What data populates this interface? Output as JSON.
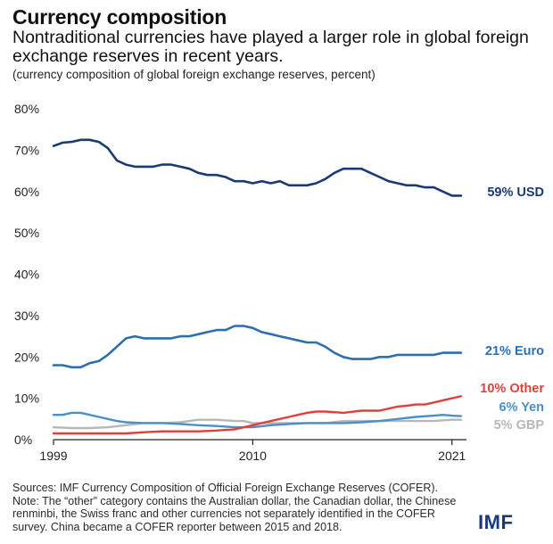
{
  "header": {
    "title": "Currency composition",
    "subtitle": "Nontraditional currencies have played a larger role in global foreign exchange reserves in recent years.",
    "unit_note": "(currency composition of global foreign exchange reserves, percent)"
  },
  "footer": {
    "sources": "Sources: IMF Currency Composition of Official Foreign Exchange Reserves (COFER).",
    "note": "Note: The “other” category contains the Australian dollar, the Canadian dollar, the Chinese renminbi, the Swiss franc and other currencies not separately identified in the COFER survey. China became a COFER reporter between 2015 and 2018.",
    "logo": "IMF"
  },
  "chart_data": {
    "type": "line",
    "title": "Currency composition",
    "xlabel": "",
    "ylabel": "",
    "xlim": [
      1999,
      2021.8
    ],
    "ylim": [
      0,
      80
    ],
    "x_ticks": [
      1999,
      2010,
      2021
    ],
    "y_ticks": [
      0,
      10,
      20,
      30,
      40,
      50,
      60,
      70,
      80
    ],
    "y_tick_labels": [
      "0%",
      "10%",
      "20%",
      "30%",
      "40%",
      "50%",
      "60%",
      "70%",
      "80%"
    ],
    "grid": false,
    "legend": "inline labels at line ends (right)",
    "series": [
      {
        "name": "USD",
        "label": "59% USD",
        "color": "#1b3a73",
        "points": [
          [
            1999,
            71
          ],
          [
            1999.5,
            71.8
          ],
          [
            2000,
            72
          ],
          [
            2000.5,
            72.5
          ],
          [
            2001,
            72.5
          ],
          [
            2001.5,
            72
          ],
          [
            2002,
            70.5
          ],
          [
            2002.5,
            67.5
          ],
          [
            2003,
            66.5
          ],
          [
            2003.5,
            66
          ],
          [
            2004,
            66
          ],
          [
            2004.5,
            66
          ],
          [
            2005,
            66.5
          ],
          [
            2005.5,
            66.5
          ],
          [
            2006,
            66
          ],
          [
            2006.5,
            65.5
          ],
          [
            2007,
            64.5
          ],
          [
            2007.5,
            64
          ],
          [
            2008,
            64
          ],
          [
            2008.5,
            63.5
          ],
          [
            2009,
            62.5
          ],
          [
            2009.5,
            62.5
          ],
          [
            2010,
            62
          ],
          [
            2010.5,
            62.5
          ],
          [
            2011,
            62
          ],
          [
            2011.5,
            62.5
          ],
          [
            2012,
            61.5
          ],
          [
            2012.5,
            61.5
          ],
          [
            2013,
            61.5
          ],
          [
            2013.5,
            62
          ],
          [
            2014,
            63
          ],
          [
            2014.5,
            64.5
          ],
          [
            2015,
            65.5
          ],
          [
            2015.5,
            65.5
          ],
          [
            2016,
            65.5
          ],
          [
            2016.5,
            64.5
          ],
          [
            2017,
            63.5
          ],
          [
            2017.5,
            62.5
          ],
          [
            2018,
            62
          ],
          [
            2018.5,
            61.5
          ],
          [
            2019,
            61.5
          ],
          [
            2019.5,
            61
          ],
          [
            2020,
            61
          ],
          [
            2020.5,
            60
          ],
          [
            2021,
            59
          ],
          [
            2021.5,
            59
          ]
        ]
      },
      {
        "name": "Euro",
        "label": "21% Euro",
        "color": "#2c6fb0",
        "points": [
          [
            1999,
            18
          ],
          [
            1999.5,
            18
          ],
          [
            2000,
            17.5
          ],
          [
            2000.5,
            17.5
          ],
          [
            2001,
            18.5
          ],
          [
            2001.5,
            19
          ],
          [
            2002,
            20.5
          ],
          [
            2002.5,
            22.5
          ],
          [
            2003,
            24.5
          ],
          [
            2003.5,
            25
          ],
          [
            2004,
            24.5
          ],
          [
            2004.5,
            24.5
          ],
          [
            2005,
            24.5
          ],
          [
            2005.5,
            24.5
          ],
          [
            2006,
            25
          ],
          [
            2006.5,
            25
          ],
          [
            2007,
            25.5
          ],
          [
            2007.5,
            26
          ],
          [
            2008,
            26.5
          ],
          [
            2008.5,
            26.5
          ],
          [
            2009,
            27.5
          ],
          [
            2009.5,
            27.5
          ],
          [
            2010,
            27
          ],
          [
            2010.5,
            26
          ],
          [
            2011,
            25.5
          ],
          [
            2011.5,
            25
          ],
          [
            2012,
            24.5
          ],
          [
            2012.5,
            24
          ],
          [
            2013,
            23.5
          ],
          [
            2013.5,
            23.5
          ],
          [
            2014,
            22.5
          ],
          [
            2014.5,
            21
          ],
          [
            2015,
            20
          ],
          [
            2015.5,
            19.5
          ],
          [
            2016,
            19.5
          ],
          [
            2016.5,
            19.5
          ],
          [
            2017,
            20
          ],
          [
            2017.5,
            20
          ],
          [
            2018,
            20.5
          ],
          [
            2018.5,
            20.5
          ],
          [
            2019,
            20.5
          ],
          [
            2019.5,
            20.5
          ],
          [
            2020,
            20.5
          ],
          [
            2020.5,
            21
          ],
          [
            2021,
            21
          ],
          [
            2021.5,
            21
          ]
        ]
      },
      {
        "name": "Other",
        "label": "10% Other",
        "color": "#e0403a",
        "points": [
          [
            1999,
            1.5
          ],
          [
            2000,
            1.5
          ],
          [
            2001,
            1.5
          ],
          [
            2002,
            1.5
          ],
          [
            2003,
            1.5
          ],
          [
            2004,
            1.8
          ],
          [
            2005,
            2
          ],
          [
            2006,
            2
          ],
          [
            2007,
            2
          ],
          [
            2008,
            2.2
          ],
          [
            2009,
            2.5
          ],
          [
            2010,
            3.5
          ],
          [
            2010.5,
            4
          ],
          [
            2011,
            4.5
          ],
          [
            2011.5,
            5
          ],
          [
            2012,
            5.5
          ],
          [
            2012.5,
            6
          ],
          [
            2013,
            6.5
          ],
          [
            2013.5,
            6.8
          ],
          [
            2014,
            6.8
          ],
          [
            2015,
            6.5
          ],
          [
            2016,
            7
          ],
          [
            2017,
            7
          ],
          [
            2017.5,
            7.5
          ],
          [
            2018,
            8
          ],
          [
            2018.5,
            8.2
          ],
          [
            2019,
            8.5
          ],
          [
            2019.5,
            8.5
          ],
          [
            2020,
            9
          ],
          [
            2020.5,
            9.5
          ],
          [
            2021,
            10
          ],
          [
            2021.5,
            10.5
          ]
        ]
      },
      {
        "name": "Yen",
        "label": "6% Yen",
        "color": "#4a8fc9",
        "points": [
          [
            1999,
            6
          ],
          [
            1999.5,
            6
          ],
          [
            2000,
            6.5
          ],
          [
            2000.5,
            6.5
          ],
          [
            2001,
            6
          ],
          [
            2001.5,
            5.5
          ],
          [
            2002,
            5
          ],
          [
            2002.5,
            4.5
          ],
          [
            2003,
            4.2
          ],
          [
            2004,
            4
          ],
          [
            2005,
            4
          ],
          [
            2006,
            3.8
          ],
          [
            2007,
            3.5
          ],
          [
            2008,
            3.3
          ],
          [
            2009,
            3
          ],
          [
            2009.5,
            3
          ],
          [
            2010,
            3
          ],
          [
            2011,
            3.5
          ],
          [
            2012,
            3.8
          ],
          [
            2013,
            4
          ],
          [
            2014,
            4
          ],
          [
            2015,
            4
          ],
          [
            2016,
            4.2
          ],
          [
            2017,
            4.5
          ],
          [
            2018,
            5
          ],
          [
            2019,
            5.5
          ],
          [
            2020,
            5.8
          ],
          [
            2020.5,
            6
          ],
          [
            2021,
            5.8
          ],
          [
            2021.5,
            5.7
          ]
        ]
      },
      {
        "name": "GBP",
        "label": "5% GBP",
        "color": "#b7b7b7",
        "points": [
          [
            1999,
            3
          ],
          [
            2000,
            2.8
          ],
          [
            2001,
            2.8
          ],
          [
            2002,
            3
          ],
          [
            2003,
            3.5
          ],
          [
            2004,
            4
          ],
          [
            2005,
            4
          ],
          [
            2006,
            4.2
          ],
          [
            2007,
            4.8
          ],
          [
            2008,
            4.8
          ],
          [
            2009,
            4.5
          ],
          [
            2009.5,
            4.5
          ],
          [
            2010,
            4
          ],
          [
            2011,
            4
          ],
          [
            2012,
            4
          ],
          [
            2013,
            4
          ],
          [
            2014,
            4
          ],
          [
            2015,
            4.5
          ],
          [
            2016,
            4.5
          ],
          [
            2017,
            4.5
          ],
          [
            2018,
            4.5
          ],
          [
            2019,
            4.5
          ],
          [
            2020,
            4.5
          ],
          [
            2021,
            4.8
          ],
          [
            2021.5,
            4.8
          ]
        ]
      }
    ]
  }
}
